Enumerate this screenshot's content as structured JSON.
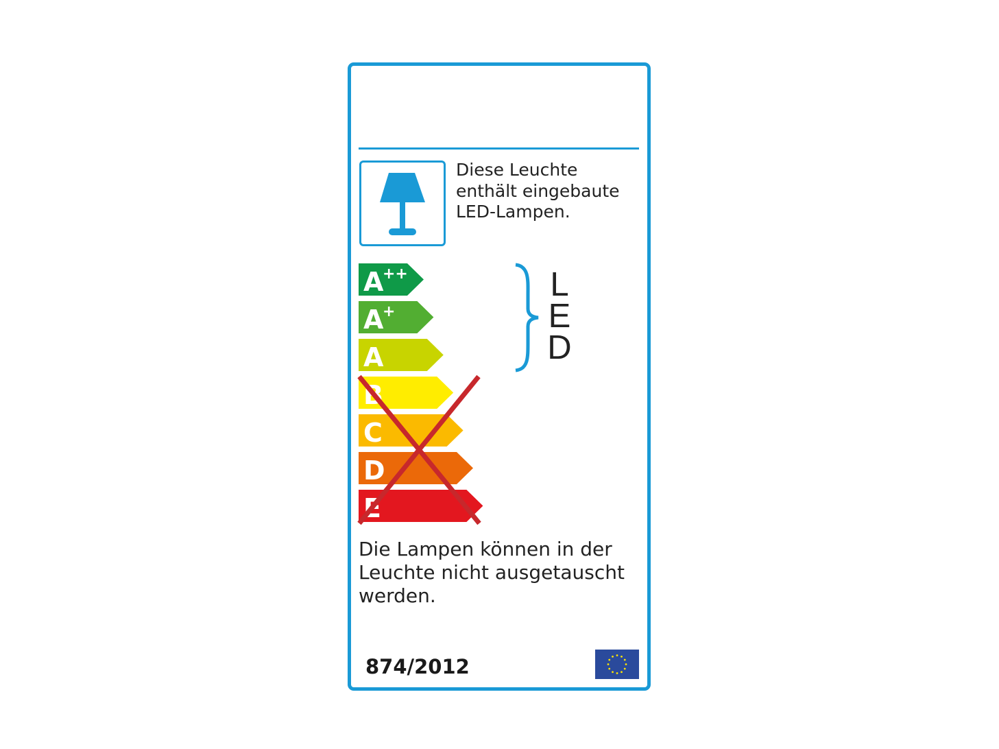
{
  "label": {
    "border_color": "#1a9ad6",
    "lamp_icon": "table-lamp-icon",
    "lamp_text": [
      "Diese Leuchte",
      "enthält eingebaute",
      "LED-Lampen."
    ],
    "classes": [
      {
        "letter": "A",
        "sup": "++",
        "color": "#0f9a48"
      },
      {
        "letter": "A",
        "sup": "+",
        "color": "#52ae32"
      },
      {
        "letter": "A",
        "sup": "",
        "color": "#c8d400"
      },
      {
        "letter": "B",
        "sup": "",
        "color": "#ffed00"
      },
      {
        "letter": "C",
        "sup": "",
        "color": "#fbba00"
      },
      {
        "letter": "D",
        "sup": "",
        "color": "#eb6909"
      },
      {
        "letter": "E",
        "sup": "",
        "color": "#e3171f"
      }
    ],
    "crossed_out_classes": [
      "B",
      "C",
      "D",
      "E"
    ],
    "cross_color": "#c7282c",
    "compatible_lamp_type": [
      "L",
      "E",
      "D"
    ],
    "bottom_text": [
      "Die Lampen können in der",
      "Leuchte nicht ausgetauscht",
      "werden."
    ],
    "regulation": "874/2012",
    "flag_icon": "eu-flag-icon"
  }
}
